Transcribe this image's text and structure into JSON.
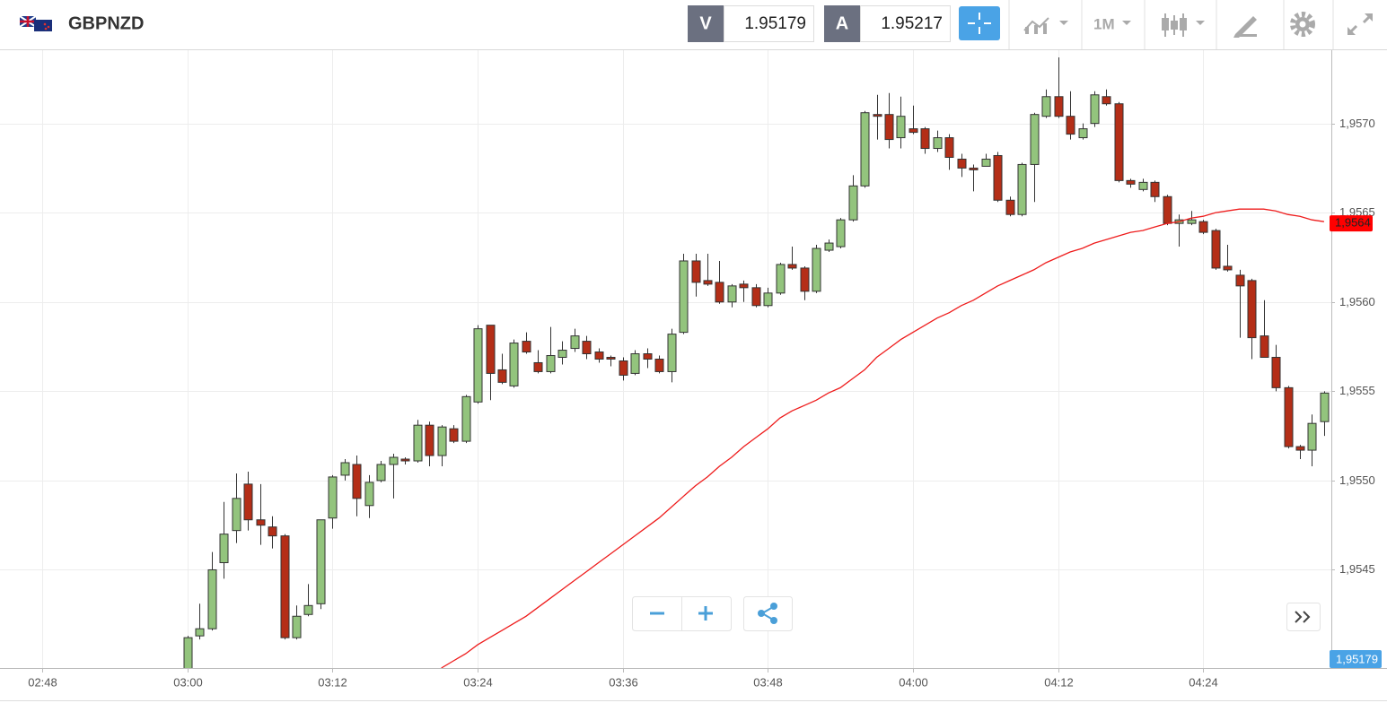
{
  "header": {
    "symbol": "GBPNZD",
    "bid_label": "V",
    "bid": "1.95179",
    "ask_label": "A",
    "ask": "1.95217",
    "timeframe": "1M"
  },
  "chart_data": {
    "type": "candlestick",
    "up_color": "#93c47d",
    "down_color": "#b42e17",
    "grid": true,
    "x": [
      180,
      181,
      182,
      183,
      184,
      185,
      186,
      187,
      188,
      189,
      190,
      191,
      192,
      193,
      194,
      195,
      196,
      197,
      198,
      199,
      200,
      201,
      202,
      203,
      204,
      205,
      206,
      207,
      208,
      209,
      210,
      211,
      212,
      213,
      214,
      215,
      216,
      217,
      218,
      219,
      220,
      221,
      222,
      223,
      224,
      225,
      226,
      227,
      228,
      229,
      230,
      231,
      232,
      233,
      234,
      235,
      236,
      237,
      238,
      239,
      240,
      241,
      242,
      243,
      244,
      245,
      246,
      247,
      248,
      249,
      250,
      251,
      252,
      253,
      254,
      255,
      256,
      257,
      258,
      259,
      260,
      261,
      262,
      263,
      264,
      265,
      266,
      267,
      268,
      269,
      270,
      271,
      272,
      273,
      274
    ],
    "open": [
      1.9539,
      1.95413,
      1.95417,
      1.95454,
      1.95472,
      1.95498,
      1.95478,
      1.95474,
      1.95469,
      1.95412,
      1.95425,
      1.95431,
      1.95479,
      1.95503,
      1.95509,
      1.95486,
      1.955,
      1.95509,
      1.95512,
      1.95511,
      1.95531,
      1.95514,
      1.95529,
      1.95522,
      1.95544,
      1.95587,
      1.95562,
      1.95553,
      1.95578,
      1.95566,
      1.95561,
      1.95569,
      1.95574,
      1.95578,
      1.95572,
      1.95569,
      1.95567,
      1.9556,
      1.95571,
      1.95568,
      1.95561,
      1.95583,
      1.95623,
      1.95612,
      1.95611,
      1.956,
      1.9561,
      1.95608,
      1.95598,
      1.95605,
      1.95621,
      1.95619,
      1.95606,
      1.95629,
      1.95631,
      1.95646,
      1.95665,
      1.95705,
      1.95705,
      1.95692,
      1.95697,
      1.95697,
      1.95686,
      1.95692,
      1.9568,
      1.95675,
      1.95676,
      1.95682,
      1.95657,
      1.95649,
      1.95677,
      1.95704,
      1.95715,
      1.95704,
      1.95692,
      1.957,
      1.95715,
      1.95711,
      1.95668,
      1.95663,
      1.95667,
      1.95659,
      1.95644,
      1.95644,
      1.95645,
      1.9564,
      1.9562,
      1.95615,
      1.95612,
      1.95581,
      1.95569,
      1.95552,
      1.95519,
      1.95517,
      1.95533
    ],
    "high": [
      1.95413,
      1.95431,
      1.9546,
      1.95488,
      1.95504,
      1.95505,
      1.95498,
      1.9548,
      1.9547,
      1.9543,
      1.95442,
      1.95478,
      1.95503,
      1.95512,
      1.95514,
      1.95503,
      1.95511,
      1.95515,
      1.95513,
      1.95534,
      1.95533,
      1.95531,
      1.95531,
      1.95548,
      1.95587,
      1.95587,
      1.95571,
      1.95579,
      1.95583,
      1.95573,
      1.95586,
      1.95578,
      1.95585,
      1.95581,
      1.95574,
      1.9557,
      1.95569,
      1.95573,
      1.95574,
      1.9557,
      1.95585,
      1.95627,
      1.95627,
      1.95627,
      1.95623,
      1.9561,
      1.95612,
      1.9561,
      1.95608,
      1.95622,
      1.95631,
      1.9562,
      1.95632,
      1.95635,
      1.95647,
      1.95671,
      1.95707,
      1.95716,
      1.95717,
      1.95715,
      1.9571,
      1.95698,
      1.95696,
      1.95694,
      1.95683,
      1.95677,
      1.95683,
      1.95684,
      1.95659,
      1.95678,
      1.95706,
      1.95719,
      1.95737,
      1.95718,
      1.957,
      1.95718,
      1.95719,
      1.95712,
      1.95669,
      1.95669,
      1.95668,
      1.9566,
      1.95649,
      1.95651,
      1.95646,
      1.95641,
      1.95632,
      1.95618,
      1.95613,
      1.95601,
      1.95576,
      1.95553,
      1.9552,
      1.95537,
      1.9555
    ],
    "low": [
      1.9538,
      1.95411,
      1.95416,
      1.95445,
      1.95465,
      1.95472,
      1.95464,
      1.95462,
      1.95411,
      1.95411,
      1.95424,
      1.95428,
      1.95473,
      1.955,
      1.9548,
      1.95479,
      1.95499,
      1.9549,
      1.95509,
      1.9551,
      1.95508,
      1.95508,
      1.95521,
      1.95521,
      1.95543,
      1.95545,
      1.95554,
      1.95552,
      1.95571,
      1.9556,
      1.9556,
      1.95565,
      1.95572,
      1.95568,
      1.95566,
      1.95564,
      1.95556,
      1.95559,
      1.95563,
      1.9556,
      1.95555,
      1.95582,
      1.95603,
      1.95609,
      1.95599,
      1.95597,
      1.956,
      1.95597,
      1.95597,
      1.95604,
      1.95618,
      1.95601,
      1.95605,
      1.95628,
      1.9563,
      1.95645,
      1.95664,
      1.95691,
      1.95686,
      1.95686,
      1.95694,
      1.95683,
      1.95684,
      1.95674,
      1.9567,
      1.95662,
      1.95676,
      1.95656,
      1.95648,
      1.95648,
      1.95656,
      1.95703,
      1.95703,
      1.95691,
      1.95691,
      1.95698,
      1.9571,
      1.95667,
      1.95664,
      1.95662,
      1.95656,
      1.95643,
      1.95631,
      1.95643,
      1.95638,
      1.95618,
      1.95617,
      1.9558,
      1.95568,
      1.95569,
      1.9555,
      1.95518,
      1.95512,
      1.95508,
      1.95525
    ],
    "close": [
      1.95412,
      1.95417,
      1.9545,
      1.9547,
      1.9549,
      1.95478,
      1.95475,
      1.95469,
      1.95412,
      1.95424,
      1.9543,
      1.95478,
      1.95502,
      1.9551,
      1.9549,
      1.95499,
      1.95509,
      1.95513,
      1.95511,
      1.95531,
      1.95514,
      1.9553,
      1.95522,
      1.95547,
      1.95585,
      1.9556,
      1.95555,
      1.95577,
      1.95572,
      1.95561,
      1.9557,
      1.95573,
      1.95581,
      1.95571,
      1.95568,
      1.95568,
      1.95559,
      1.95571,
      1.95568,
      1.95561,
      1.95582,
      1.95623,
      1.95611,
      1.9561,
      1.956,
      1.95609,
      1.95608,
      1.95598,
      1.95605,
      1.95621,
      1.95619,
      1.95606,
      1.9563,
      1.95633,
      1.95646,
      1.95665,
      1.95706,
      1.95704,
      1.95691,
      1.95704,
      1.95695,
      1.95686,
      1.95692,
      1.95681,
      1.95675,
      1.95674,
      1.9568,
      1.95657,
      1.95649,
      1.95677,
      1.95705,
      1.95715,
      1.95704,
      1.95694,
      1.95697,
      1.95716,
      1.95711,
      1.95668,
      1.95666,
      1.95667,
      1.95659,
      1.95644,
      1.95646,
      1.95646,
      1.95639,
      1.95619,
      1.95618,
      1.95609,
      1.9558,
      1.95569,
      1.95552,
      1.95519,
      1.95517,
      1.95532,
      1.95549
    ],
    "overlay": {
      "type": "line",
      "color": "#ee1c1c",
      "values": [
        null,
        null,
        null,
        null,
        null,
        null,
        null,
        null,
        null,
        null,
        null,
        null,
        null,
        null,
        null,
        null,
        null,
        null,
        null,
        null,
        null,
        1.95395,
        1.95399,
        1.95403,
        1.95408,
        1.95412,
        1.95416,
        1.9542,
        1.95424,
        1.95429,
        1.95434,
        1.95439,
        1.95444,
        1.95449,
        1.95454,
        1.95459,
        1.95464,
        1.95469,
        1.95474,
        1.95479,
        1.95485,
        1.95491,
        1.95497,
        1.95502,
        1.95508,
        1.95513,
        1.95519,
        1.95524,
        1.95529,
        1.95535,
        1.95539,
        1.95542,
        1.95545,
        1.95549,
        1.95552,
        1.95557,
        1.95562,
        1.95569,
        1.95574,
        1.95579,
        1.95583,
        1.95587,
        1.95591,
        1.95594,
        1.95598,
        1.95601,
        1.95605,
        1.95609,
        1.95612,
        1.95615,
        1.95618,
        1.95622,
        1.95625,
        1.95628,
        1.9563,
        1.95633,
        1.95635,
        1.95637,
        1.95639,
        1.9564,
        1.95642,
        1.95644,
        1.95645,
        1.95647,
        1.95648,
        1.9565,
        1.95651,
        1.95652,
        1.95652,
        1.95652,
        1.95651,
        1.95649,
        1.95648,
        1.95646,
        1.95645
      ]
    },
    "overlay_tag": {
      "value": 1.95644,
      "label": "1,9564",
      "color": "#ff0000"
    },
    "bid_tag": "1,95179",
    "xlim": [
      164.5,
      274.6
    ],
    "xticks": [
      {
        "value": 168,
        "label": "02:48"
      },
      {
        "value": 180,
        "label": "03:00"
      },
      {
        "value": 192,
        "label": "03:12"
      },
      {
        "value": 204,
        "label": "03:24"
      },
      {
        "value": 216,
        "label": "03:36"
      },
      {
        "value": 228,
        "label": "03:48"
      },
      {
        "value": 240,
        "label": "04:00"
      },
      {
        "value": 252,
        "label": "04:12"
      },
      {
        "value": 264,
        "label": "04:24"
      }
    ],
    "ylim": [
      1.95395,
      1.95741
    ],
    "yticks": [
      {
        "value": 1.9545,
        "label": "1,9545"
      },
      {
        "value": 1.955,
        "label": "1,9550"
      },
      {
        "value": 1.9555,
        "label": "1,9555"
      },
      {
        "value": 1.956,
        "label": "1,9560"
      },
      {
        "value": 1.9565,
        "label": "1,9565"
      },
      {
        "value": 1.957,
        "label": "1,9570"
      }
    ]
  }
}
